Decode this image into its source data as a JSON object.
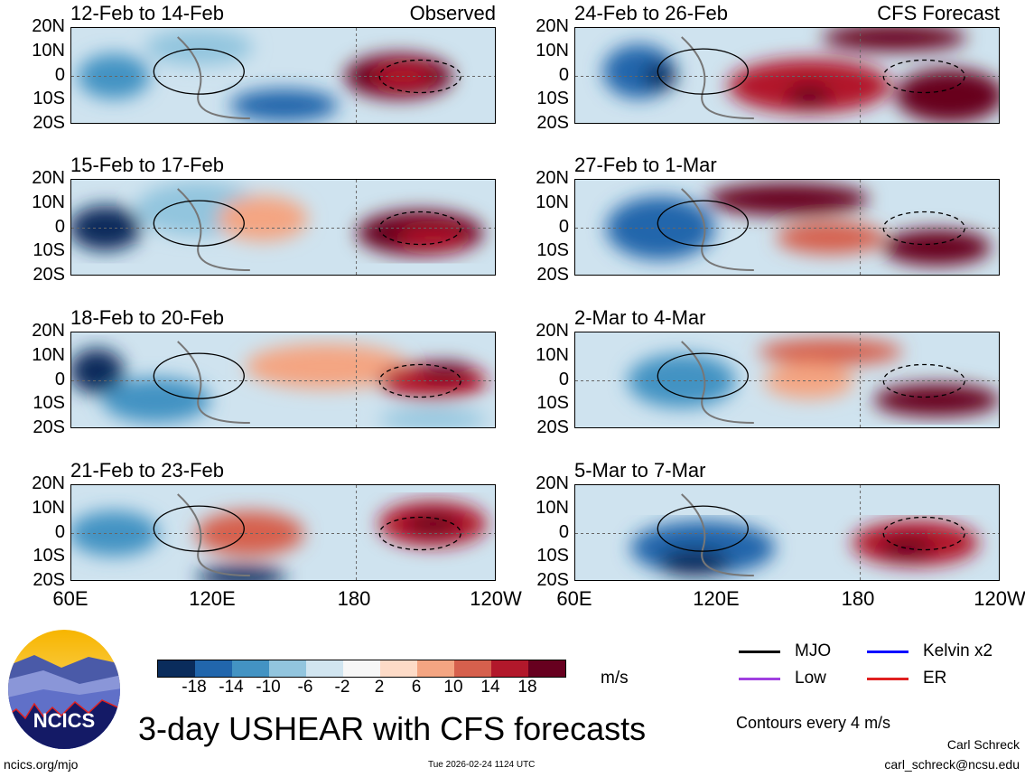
{
  "panels_left": [
    {
      "title": "12-Feb to 14-Feb",
      "tag": "Observed"
    },
    {
      "title": "15-Feb to 17-Feb",
      "tag": ""
    },
    {
      "title": "18-Feb to 20-Feb",
      "tag": ""
    },
    {
      "title": "21-Feb to 23-Feb",
      "tag": ""
    }
  ],
  "panels_right": [
    {
      "title": "24-Feb to 26-Feb",
      "tag": "CFS Forecast"
    },
    {
      "title": "27-Feb to 1-Mar",
      "tag": ""
    },
    {
      "title": "2-Mar to 4-Mar",
      "tag": ""
    },
    {
      "title": "5-Mar to 7-Mar",
      "tag": ""
    }
  ],
  "y_ticks": [
    "20N",
    "10N",
    "0",
    "10S",
    "20S"
  ],
  "x_ticks": [
    "60E",
    "120E",
    "180",
    "120W"
  ],
  "colorbar": {
    "labels": [
      "-18",
      "-14",
      "-10",
      "-6",
      "-2",
      "2",
      "6",
      "10",
      "14",
      "18"
    ],
    "colors": [
      "#0a2c5c",
      "#2166ac",
      "#4393c3",
      "#92c5de",
      "#d1e5f0",
      "#f7f7f7",
      "#fddbc7",
      "#f4a582",
      "#d6604d",
      "#b2182b",
      "#67001f"
    ],
    "units": "m/s"
  },
  "legend": [
    {
      "label": "MJO",
      "color": "#000000"
    },
    {
      "label": "Kelvin x2",
      "color": "#0000ff"
    },
    {
      "label": "Low",
      "color": "#a040e0"
    },
    {
      "label": "ER",
      "color": "#e02020"
    }
  ],
  "contours_note": "Contours every 4 m/s",
  "title": "3-day USHEAR with CFS forecasts",
  "logo_text": "NCICS",
  "url": "ncics.org/mjo",
  "timestamp": "Tue 2026-02-24 1124 UTC",
  "author": "Carl Schreck",
  "email": "carl_schreck@ncsu.edu"
}
